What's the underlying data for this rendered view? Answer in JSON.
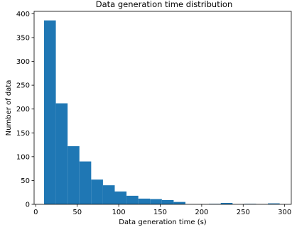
{
  "chart_data": {
    "type": "bar",
    "title": "Data generation time distribution",
    "xlabel": "Data generation time (s)",
    "ylabel": "Number of data",
    "xlim": [
      -2,
      308
    ],
    "ylim": [
      0,
      405
    ],
    "xticks": [
      0,
      50,
      100,
      150,
      200,
      250,
      300
    ],
    "yticks": [
      0,
      50,
      100,
      150,
      200,
      250,
      300,
      350,
      400
    ],
    "bar_color": "#1f77b4",
    "bins": [
      {
        "x0": 10.0,
        "x1": 24.2,
        "value": 386
      },
      {
        "x0": 24.2,
        "x1": 38.4,
        "value": 212
      },
      {
        "x0": 38.4,
        "x1": 52.6,
        "value": 122
      },
      {
        "x0": 52.6,
        "x1": 66.8,
        "value": 90
      },
      {
        "x0": 66.8,
        "x1": 81.0,
        "value": 52
      },
      {
        "x0": 81.0,
        "x1": 95.2,
        "value": 40
      },
      {
        "x0": 95.2,
        "x1": 109.4,
        "value": 27
      },
      {
        "x0": 109.4,
        "x1": 123.6,
        "value": 18
      },
      {
        "x0": 123.6,
        "x1": 137.8,
        "value": 12
      },
      {
        "x0": 137.8,
        "x1": 152.0,
        "value": 11
      },
      {
        "x0": 152.0,
        "x1": 166.2,
        "value": 9
      },
      {
        "x0": 166.2,
        "x1": 180.4,
        "value": 5
      },
      {
        "x0": 180.4,
        "x1": 194.6,
        "value": 0
      },
      {
        "x0": 194.6,
        "x1": 208.8,
        "value": 0
      },
      {
        "x0": 208.8,
        "x1": 223.0,
        "value": 1
      },
      {
        "x0": 223.0,
        "x1": 237.2,
        "value": 3
      },
      {
        "x0": 237.2,
        "x1": 251.4,
        "value": 0
      },
      {
        "x0": 251.4,
        "x1": 265.6,
        "value": 1
      },
      {
        "x0": 265.6,
        "x1": 279.8,
        "value": 0
      },
      {
        "x0": 279.8,
        "x1": 294.0,
        "value": 2
      }
    ]
  }
}
